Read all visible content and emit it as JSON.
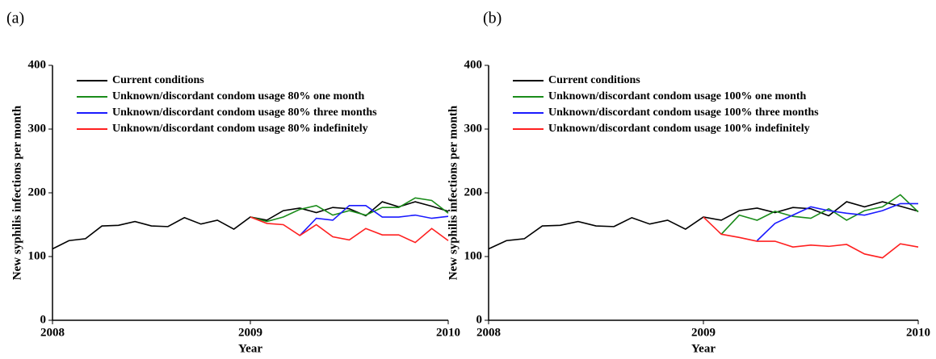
{
  "chart_data": [
    {
      "type": "line",
      "panel": "(a)",
      "x_label": "Year",
      "y_label": "New syphilis infections per month",
      "x": [
        0,
        1,
        2,
        3,
        4,
        5,
        6,
        7,
        8,
        9,
        10,
        11,
        12,
        13,
        14,
        15,
        16,
        17,
        18,
        19,
        20,
        21,
        22,
        23,
        24
      ],
      "xlim": [
        0,
        24
      ],
      "xticks": [
        {
          "value": 0,
          "label": "2008"
        },
        {
          "value": 12,
          "label": "2009"
        },
        {
          "value": 24,
          "label": "2010"
        }
      ],
      "ylim": [
        0,
        400
      ],
      "yticks": [
        0,
        100,
        200,
        300,
        400
      ],
      "legend": "upper left",
      "series": [
        {
          "name": "Current conditions",
          "color": "#000000",
          "values": [
            112,
            125,
            128,
            148,
            149,
            155,
            148,
            147,
            161,
            151,
            157,
            143,
            162,
            157,
            172,
            176,
            169,
            177,
            175,
            164,
            186,
            178,
            186,
            179,
            171
          ]
        },
        {
          "name": "Unknown/discordant condom usage 80% one month",
          "color": "#1a8c1a",
          "values": [
            null,
            null,
            null,
            null,
            null,
            null,
            null,
            null,
            null,
            null,
            null,
            null,
            162,
            155,
            162,
            174,
            180,
            165,
            172,
            165,
            177,
            177,
            192,
            188,
            168
          ]
        },
        {
          "name": "Unknown/discordant condom usage 80% three months",
          "color": "#1a1aff",
          "values": [
            null,
            null,
            null,
            null,
            null,
            null,
            null,
            null,
            null,
            null,
            null,
            null,
            null,
            null,
            null,
            133,
            160,
            157,
            180,
            180,
            162,
            162,
            165,
            160,
            163
          ]
        },
        {
          "name": "Unknown/discordant condom usage 80% indefinitely",
          "color": "#ff2020",
          "values": [
            null,
            null,
            null,
            null,
            null,
            null,
            null,
            null,
            null,
            null,
            null,
            null,
            162,
            152,
            150,
            133,
            150,
            131,
            126,
            144,
            134,
            134,
            122,
            144,
            125
          ]
        }
      ]
    },
    {
      "type": "line",
      "panel": "(b)",
      "x_label": "Year",
      "y_label": "New syphilis infections per month",
      "x": [
        0,
        1,
        2,
        3,
        4,
        5,
        6,
        7,
        8,
        9,
        10,
        11,
        12,
        13,
        14,
        15,
        16,
        17,
        18,
        19,
        20,
        21,
        22,
        23,
        24
      ],
      "xlim": [
        0,
        24
      ],
      "xticks": [
        {
          "value": 0,
          "label": "2008"
        },
        {
          "value": 12,
          "label": "2009"
        },
        {
          "value": 24,
          "label": "2010"
        }
      ],
      "ylim": [
        0,
        400
      ],
      "yticks": [
        0,
        100,
        200,
        300,
        400
      ],
      "legend": "upper left",
      "series": [
        {
          "name": "Current conditions",
          "color": "#000000",
          "values": [
            112,
            125,
            128,
            148,
            149,
            155,
            148,
            147,
            161,
            151,
            157,
            143,
            162,
            157,
            172,
            176,
            169,
            177,
            175,
            164,
            186,
            178,
            186,
            179,
            171
          ]
        },
        {
          "name": "Unknown/discordant condom usage 100% one month",
          "color": "#1a8c1a",
          "values": [
            null,
            null,
            null,
            null,
            null,
            null,
            null,
            null,
            null,
            null,
            null,
            null,
            null,
            135,
            165,
            157,
            171,
            163,
            160,
            175,
            157,
            172,
            178,
            197,
            170
          ]
        },
        {
          "name": "Unknown/discordant condom usage 100% three months",
          "color": "#1a1aff",
          "values": [
            null,
            null,
            null,
            null,
            null,
            null,
            null,
            null,
            null,
            null,
            null,
            null,
            null,
            null,
            null,
            125,
            152,
            165,
            178,
            172,
            168,
            165,
            172,
            183,
            183
          ]
        },
        {
          "name": "Unknown/discordant condom usage 100% indefinitely",
          "color": "#ff2020",
          "values": [
            null,
            null,
            null,
            null,
            null,
            null,
            null,
            null,
            null,
            null,
            null,
            null,
            162,
            135,
            130,
            124,
            124,
            115,
            118,
            116,
            119,
            104,
            98,
            120,
            115
          ]
        }
      ]
    }
  ]
}
